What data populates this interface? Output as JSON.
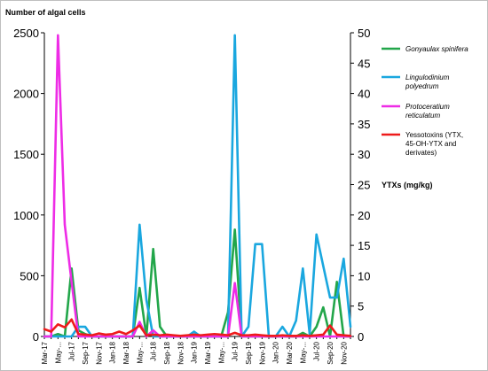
{
  "chart_data": {
    "type": "line",
    "ylabel": "Number of algal cells",
    "y2label": "YTXs (mg/kg)",
    "ylim": [
      0,
      2500
    ],
    "y2lim": [
      0,
      50
    ],
    "yticks": [
      0,
      500,
      1000,
      1500,
      2000,
      2500
    ],
    "y2ticks": [
      0,
      5,
      10,
      15,
      20,
      25,
      30,
      35,
      40,
      45,
      50
    ],
    "x_tick_labels": [
      "Mar-17",
      "May-...",
      "Jul-17",
      "Sep-17",
      "Nov-17",
      "Jan-18",
      "Mar-18",
      "May-...",
      "Jul-18",
      "Sep-18",
      "Nov-18",
      "Jan-19",
      "Mar-19",
      "May-...",
      "Jul-19",
      "Sep-19",
      "Nov-19",
      "Jan-20",
      "Mar-20",
      "May-...",
      "Jul-20",
      "Sep-20",
      "Nov-20"
    ],
    "x_months": [
      "2017-03",
      "2017-04",
      "2017-05",
      "2017-06",
      "2017-07",
      "2017-08",
      "2017-09",
      "2017-10",
      "2017-11",
      "2017-12",
      "2018-01",
      "2018-02",
      "2018-03",
      "2018-04",
      "2018-05",
      "2018-06",
      "2018-07",
      "2018-08",
      "2018-09",
      "2018-10",
      "2018-11",
      "2018-12",
      "2019-01",
      "2019-02",
      "2019-03",
      "2019-04",
      "2019-05",
      "2019-06",
      "2019-07",
      "2019-08",
      "2019-09",
      "2019-10",
      "2019-11",
      "2019-12",
      "2020-01",
      "2020-02",
      "2020-03",
      "2020-04",
      "2020-05",
      "2020-06",
      "2020-07",
      "2020-08",
      "2020-09",
      "2020-10",
      "2020-11",
      "2020-12"
    ],
    "grid": false,
    "legend": "right",
    "series": [
      {
        "name": "Gonyaulax spinifera",
        "name_italic": true,
        "color": "#22a64a",
        "axis": "left",
        "values": [
          0,
          0,
          20,
          0,
          560,
          50,
          20,
          0,
          0,
          0,
          0,
          0,
          0,
          0,
          400,
          0,
          720,
          80,
          0,
          0,
          0,
          0,
          0,
          0,
          0,
          0,
          0,
          200,
          880,
          0,
          0,
          0,
          0,
          0,
          0,
          0,
          0,
          0,
          30,
          0,
          80,
          240,
          0,
          450,
          0,
          0
        ]
      },
      {
        "name": "Lingulodinium polyedrum",
        "name_italic": true,
        "color": "#1aa7df",
        "axis": "left",
        "values": [
          0,
          0,
          0,
          0,
          0,
          80,
          80,
          0,
          0,
          0,
          0,
          0,
          0,
          0,
          920,
          300,
          0,
          0,
          0,
          0,
          0,
          0,
          40,
          0,
          0,
          0,
          0,
          0,
          2480,
          0,
          80,
          760,
          760,
          0,
          0,
          80,
          0,
          130,
          560,
          20,
          840,
          580,
          320,
          320,
          640,
          80
        ]
      },
      {
        "name": "Protoceratium reticulatum",
        "name_italic": true,
        "color": "#ee2ce6",
        "axis": "left",
        "values": [
          0,
          0,
          2480,
          920,
          450,
          0,
          0,
          0,
          0,
          0,
          0,
          0,
          0,
          0,
          120,
          0,
          50,
          0,
          0,
          0,
          0,
          0,
          0,
          0,
          0,
          0,
          0,
          0,
          440,
          0,
          0,
          0,
          0,
          0,
          0,
          0,
          0,
          0,
          0,
          0,
          0,
          0,
          0,
          0,
          0,
          0
        ]
      },
      {
        "name": "Yessotoxins (YTX, 45-OH-YTX and derivates)",
        "name_italic": false,
        "color": "#ee1b1b",
        "axis": "right",
        "values": [
          1.2,
          0.8,
          2.0,
          1.5,
          2.8,
          0.4,
          0.3,
          0.2,
          0.5,
          0.3,
          0.4,
          0.8,
          0.4,
          1.0,
          1.8,
          0.2,
          0.3,
          0.2,
          0.3,
          0.2,
          0.1,
          0.2,
          0.3,
          0.2,
          0.3,
          0.4,
          0.3,
          0.2,
          0.6,
          0.2,
          0.2,
          0.3,
          0.2,
          0.1,
          0.1,
          0.2,
          0.1,
          0.1,
          0.2,
          0.1,
          0.2,
          0.3,
          1.8,
          0.3,
          0.2,
          0.1
        ]
      }
    ]
  }
}
